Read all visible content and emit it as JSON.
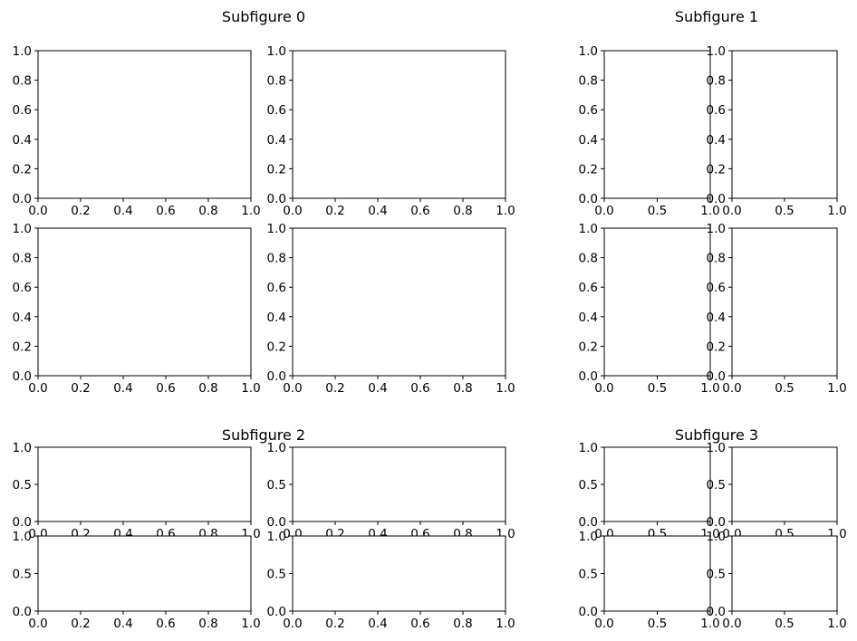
{
  "subfigures": [
    {
      "title": "Subfigure 0",
      "axes": [
        {
          "xlim": [
            0,
            1
          ],
          "ylim": [
            0,
            1
          ],
          "xticks": [
            "0.0",
            "0.2",
            "0.4",
            "0.6",
            "0.8",
            "1.0"
          ],
          "yticks": [
            "0.0",
            "0.2",
            "0.4",
            "0.6",
            "0.8",
            "1.0"
          ]
        },
        {
          "xlim": [
            0,
            1
          ],
          "ylim": [
            0,
            1
          ],
          "xticks": [
            "0.0",
            "0.2",
            "0.4",
            "0.6",
            "0.8",
            "1.0"
          ],
          "yticks": [
            "0.0",
            "0.2",
            "0.4",
            "0.6",
            "0.8",
            "1.0"
          ]
        },
        {
          "xlim": [
            0,
            1
          ],
          "ylim": [
            0,
            1
          ],
          "xticks": [
            "0.0",
            "0.2",
            "0.4",
            "0.6",
            "0.8",
            "1.0"
          ],
          "yticks": [
            "0.0",
            "0.2",
            "0.4",
            "0.6",
            "0.8",
            "1.0"
          ]
        },
        {
          "xlim": [
            0,
            1
          ],
          "ylim": [
            0,
            1
          ],
          "xticks": [
            "0.0",
            "0.2",
            "0.4",
            "0.6",
            "0.8",
            "1.0"
          ],
          "yticks": [
            "0.0",
            "0.2",
            "0.4",
            "0.6",
            "0.8",
            "1.0"
          ]
        }
      ]
    },
    {
      "title": "Subfigure 1",
      "axes": [
        {
          "xlim": [
            0,
            1
          ],
          "ylim": [
            0,
            1
          ],
          "xticks": [
            "0.0",
            "0.5",
            "1.0"
          ],
          "yticks": [
            "0.0",
            "0.2",
            "0.4",
            "0.6",
            "0.8",
            "1.0"
          ]
        },
        {
          "xlim": [
            0,
            1
          ],
          "ylim": [
            0,
            1
          ],
          "xticks": [
            "0.0",
            "0.5",
            "1.0"
          ],
          "yticks": [
            "0.0",
            "0.2",
            "0.4",
            "0.6",
            "0.8",
            "1.0"
          ]
        },
        {
          "xlim": [
            0,
            1
          ],
          "ylim": [
            0,
            1
          ],
          "xticks": [
            "0.0",
            "0.5",
            "1.0"
          ],
          "yticks": [
            "0.0",
            "0.2",
            "0.4",
            "0.6",
            "0.8",
            "1.0"
          ]
        },
        {
          "xlim": [
            0,
            1
          ],
          "ylim": [
            0,
            1
          ],
          "xticks": [
            "0.0",
            "0.5",
            "1.0"
          ],
          "yticks": [
            "0.0",
            "0.2",
            "0.4",
            "0.6",
            "0.8",
            "1.0"
          ]
        }
      ]
    },
    {
      "title": "Subfigure 2",
      "axes": [
        {
          "xlim": [
            0,
            1
          ],
          "ylim": [
            0,
            1
          ],
          "xticks": [
            "0.0",
            "0.2",
            "0.4",
            "0.6",
            "0.8",
            "1.0"
          ],
          "yticks": [
            "0.0",
            "0.5",
            "1.0"
          ]
        },
        {
          "xlim": [
            0,
            1
          ],
          "ylim": [
            0,
            1
          ],
          "xticks": [
            "0.0",
            "0.2",
            "0.4",
            "0.6",
            "0.8",
            "1.0"
          ],
          "yticks": [
            "0.0",
            "0.5",
            "1.0"
          ]
        },
        {
          "xlim": [
            0,
            1
          ],
          "ylim": [
            0,
            1
          ],
          "xticks": [
            "0.0",
            "0.2",
            "0.4",
            "0.6",
            "0.8",
            "1.0"
          ],
          "yticks": [
            "0.0",
            "0.5",
            "1.0"
          ]
        },
        {
          "xlim": [
            0,
            1
          ],
          "ylim": [
            0,
            1
          ],
          "xticks": [
            "0.0",
            "0.2",
            "0.4",
            "0.6",
            "0.8",
            "1.0"
          ],
          "yticks": [
            "0.0",
            "0.5",
            "1.0"
          ]
        }
      ]
    },
    {
      "title": "Subfigure 3",
      "axes": [
        {
          "xlim": [
            0,
            1
          ],
          "ylim": [
            0,
            1
          ],
          "xticks": [
            "0.0",
            "0.5",
            "1.0"
          ],
          "yticks": [
            "0.0",
            "0.5",
            "1.0"
          ]
        },
        {
          "xlim": [
            0,
            1
          ],
          "ylim": [
            0,
            1
          ],
          "xticks": [
            "0.0",
            "0.5",
            "1.0"
          ],
          "yticks": [
            "0.0",
            "0.5",
            "1.0"
          ]
        },
        {
          "xlim": [
            0,
            1
          ],
          "ylim": [
            0,
            1
          ],
          "xticks": [
            "0.0",
            "0.5",
            "1.0"
          ],
          "yticks": [
            "0.0",
            "0.5",
            "1.0"
          ]
        },
        {
          "xlim": [
            0,
            1
          ],
          "ylim": [
            0,
            1
          ],
          "xticks": [
            "0.0",
            "0.5",
            "1.0"
          ],
          "yticks": [
            "0.0",
            "0.5",
            "1.0"
          ]
        }
      ]
    }
  ],
  "chart_data": [
    {
      "type": "scatter",
      "subfigure": "Subfigure 0",
      "axes": 4,
      "series": [],
      "xlim": [
        0,
        1
      ],
      "ylim": [
        0,
        1
      ],
      "grid": false
    },
    {
      "type": "scatter",
      "subfigure": "Subfigure 1",
      "axes": 4,
      "series": [],
      "xlim": [
        0,
        1
      ],
      "ylim": [
        0,
        1
      ],
      "grid": false
    },
    {
      "type": "scatter",
      "subfigure": "Subfigure 2",
      "axes": 4,
      "series": [],
      "xlim": [
        0,
        1
      ],
      "ylim": [
        0,
        1
      ],
      "grid": false
    },
    {
      "type": "scatter",
      "subfigure": "Subfigure 3",
      "axes": 4,
      "series": [],
      "xlim": [
        0,
        1
      ],
      "ylim": [
        0,
        1
      ],
      "grid": false
    }
  ]
}
